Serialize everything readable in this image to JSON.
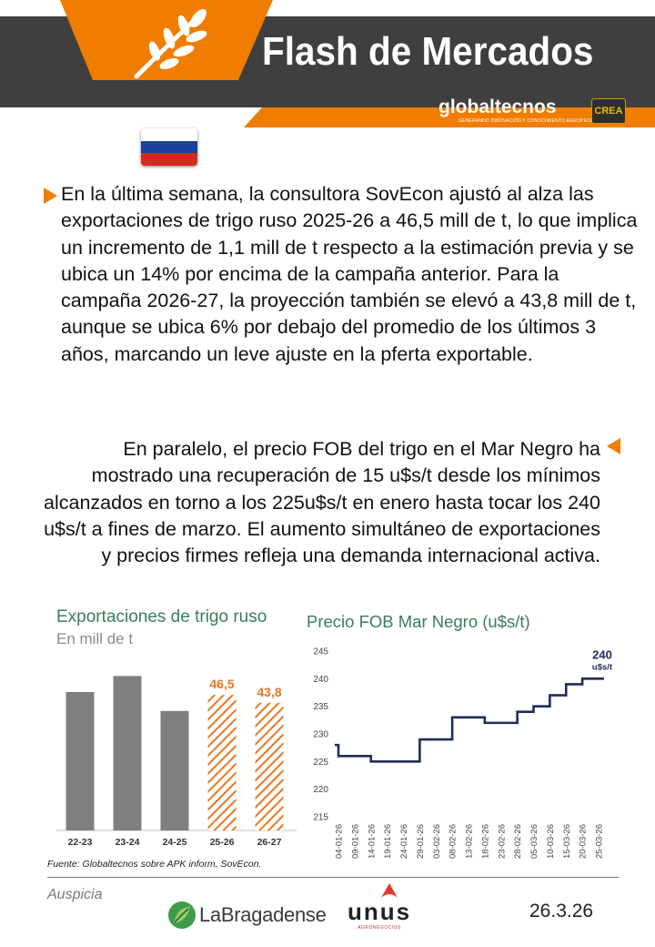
{
  "header": {
    "title": "Flash de Mercados",
    "brand_name": "globaltecnos",
    "brand_tagline": "GENERANDO INNOVACIÓN Y CONOCIMIENTO AGROPECUARIO",
    "partner_logo": "CREA",
    "colors": {
      "orange": "#f07d00",
      "gray": "#3f3f3f"
    }
  },
  "flag": {
    "country": "Russia",
    "colors": [
      "#ffffff",
      "#1c3f9a",
      "#d52b1e"
    ]
  },
  "body": {
    "paragraph1": "En la última semana, la consultora SovEcon ajustó al alza las exportaciones de trigo ruso 2025-26 a 46,5 mill de t, lo que implica un incremento de 1,1 mill de t respecto a la estimación previa y se ubica un 14% por encima de la campaña anterior. Para la campaña 2026-27, la proyección también se elevó a 43,8 mill de t, aunque se ubica 6% por debajo del promedio de los últimos 3 años, marcando un leve ajuste en la pferta exportable.",
    "paragraph2": "En paralelo, el precio FOB del trigo en el Mar Negro ha mostrado una recuperación de 15 u$s/t desde los mínimos alcanzados en torno a los 225u$s/t en enero hasta tocar los 240 u$s/t a fines de marzo. El aumento simultáneo de exportaciones y precios firmes refleja una demanda internacional activa."
  },
  "chart_data": [
    {
      "type": "bar",
      "title": "Exportaciones de trigo ruso",
      "subtitle": "En mill de t",
      "categories": [
        "22-23",
        "23-24",
        "24-25",
        "25-26",
        "26-27"
      ],
      "values": [
        47.5,
        53.0,
        41.0,
        46.5,
        43.8
      ],
      "labels": [
        "",
        "",
        "",
        "46,5",
        "43,8"
      ],
      "projected": [
        false,
        false,
        false,
        true,
        true
      ],
      "colors": {
        "actual": "#7f7f7f",
        "projected": "#e87722"
      },
      "ylim": [
        0,
        60
      ],
      "grid": false
    },
    {
      "type": "line",
      "title": "Precio FOB Mar Negro (u$s/t)",
      "x": [
        "04-01-26",
        "09-01-26",
        "14-01-26",
        "19-01-26",
        "24-01-26",
        "29-01-26",
        "03-02-26",
        "08-02-26",
        "13-02-26",
        "18-02-26",
        "23-02-26",
        "28-02-26",
        "05-03-26",
        "10-03-26",
        "15-03-26",
        "20-03-26",
        "25-03-26"
      ],
      "values": [
        228,
        226,
        226,
        225,
        225,
        225,
        229,
        229,
        233,
        233,
        232,
        232,
        234,
        235,
        237,
        239,
        240
      ],
      "yticks": [
        215,
        220,
        225,
        230,
        235,
        240,
        245
      ],
      "ylim": [
        215,
        245
      ],
      "end_label": "240",
      "end_unit": "u$s/t",
      "line_color": "#1f2d5a",
      "grid": false
    }
  ],
  "footer": {
    "source": "Fuente: Globaltecnos sobre APK inform, SovEcon.",
    "sponsor_label": "Auspicia",
    "sponsor1": "LaBragadense",
    "sponsor2": "unus",
    "sponsor2_tagline": "AGRONEGOCIOS",
    "date": "26.3.26"
  }
}
